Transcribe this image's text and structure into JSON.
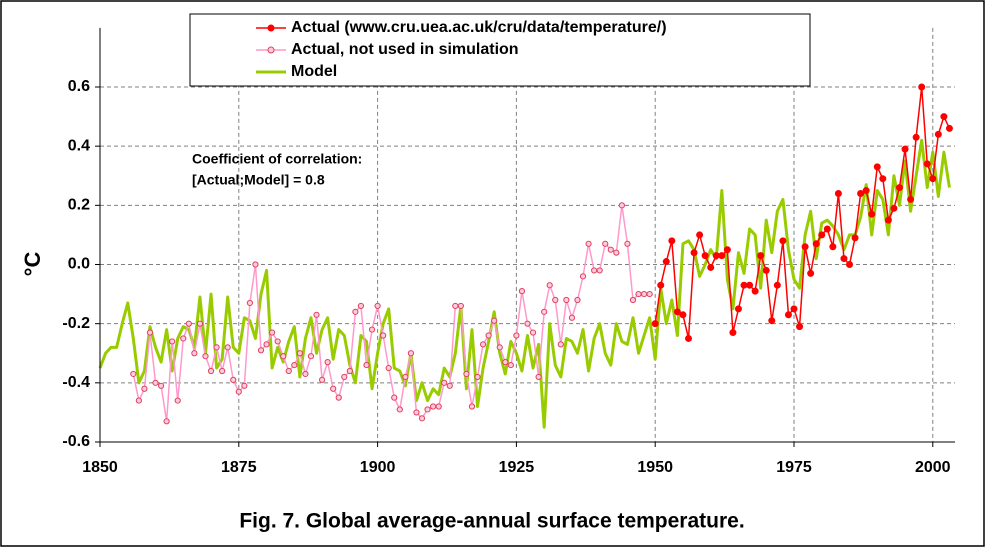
{
  "chart_data": {
    "type": "line",
    "title": "Fig. 7. Global average-annual surface temperature.",
    "y_label": "°C",
    "annotation": [
      "Coefficient of correlation:",
      "[Actual;Model] = 0.8"
    ],
    "xlim": [
      1850,
      2004
    ],
    "xticks": [
      1850,
      1875,
      1900,
      1925,
      1950,
      1975,
      2000
    ],
    "ylim": [
      -0.6,
      0.8
    ],
    "yticks": [
      -0.6,
      -0.4,
      -0.2,
      {
        "value": 0,
        "label": "0.0"
      },
      0.2,
      0.4,
      0.6
    ],
    "grid": true,
    "legend": "top",
    "x": [
      1850,
      1851,
      1852,
      1853,
      1854,
      1855,
      1856,
      1857,
      1858,
      1859,
      1860,
      1861,
      1862,
      1863,
      1864,
      1865,
      1866,
      1867,
      1868,
      1869,
      1870,
      1871,
      1872,
      1873,
      1874,
      1875,
      1876,
      1877,
      1878,
      1879,
      1880,
      1881,
      1882,
      1883,
      1884,
      1885,
      1886,
      1887,
      1888,
      1889,
      1890,
      1891,
      1892,
      1893,
      1894,
      1895,
      1896,
      1897,
      1898,
      1899,
      1900,
      1901,
      1902,
      1903,
      1904,
      1905,
      1906,
      1907,
      1908,
      1909,
      1910,
      1911,
      1912,
      1913,
      1914,
      1915,
      1916,
      1917,
      1918,
      1919,
      1920,
      1921,
      1922,
      1923,
      1924,
      1925,
      1926,
      1927,
      1928,
      1929,
      1930,
      1931,
      1932,
      1933,
      1934,
      1935,
      1936,
      1937,
      1938,
      1939,
      1940,
      1941,
      1942,
      1943,
      1944,
      1945,
      1946,
      1947,
      1948,
      1949,
      1950,
      1951,
      1952,
      1953,
      1954,
      1955,
      1956,
      1957,
      1958,
      1959,
      1960,
      1961,
      1962,
      1963,
      1964,
      1965,
      1966,
      1967,
      1968,
      1969,
      1970,
      1971,
      1972,
      1973,
      1974,
      1975,
      1976,
      1977,
      1978,
      1979,
      1980,
      1981,
      1982,
      1983,
      1984,
      1985,
      1986,
      1987,
      1988,
      1989,
      1990,
      1991,
      1992,
      1993,
      1994,
      1995,
      1996,
      1997,
      1998,
      1999,
      2000,
      2001,
      2002,
      2003
    ],
    "series": [
      {
        "name": "Actual (www.cru.uea.ac.uk/cru/data/temperature/)",
        "color": "#ff0000",
        "marker": "filled",
        "values": [
          null,
          null,
          null,
          null,
          null,
          null,
          null,
          null,
          null,
          null,
          null,
          null,
          null,
          null,
          null,
          null,
          null,
          null,
          null,
          null,
          null,
          null,
          null,
          null,
          null,
          null,
          null,
          null,
          null,
          null,
          null,
          null,
          null,
          null,
          null,
          null,
          null,
          null,
          null,
          null,
          null,
          null,
          null,
          null,
          null,
          null,
          null,
          null,
          null,
          null,
          null,
          null,
          null,
          null,
          null,
          null,
          null,
          null,
          null,
          null,
          null,
          null,
          null,
          null,
          null,
          null,
          null,
          null,
          null,
          null,
          null,
          null,
          null,
          null,
          null,
          null,
          null,
          null,
          null,
          null,
          null,
          null,
          null,
          null,
          null,
          null,
          null,
          null,
          null,
          null,
          null,
          null,
          null,
          null,
          null,
          null,
          null,
          null,
          null,
          null,
          -0.2,
          -0.07,
          0.01,
          0.08,
          -0.16,
          -0.17,
          -0.25,
          0.04,
          0.1,
          0.03,
          -0.01,
          0.03,
          0.03,
          0.05,
          -0.23,
          -0.15,
          -0.07,
          -0.07,
          -0.09,
          0.03,
          -0.02,
          -0.19,
          -0.07,
          0.08,
          -0.17,
          -0.15,
          -0.21,
          0.06,
          -0.03,
          0.07,
          0.1,
          0.12,
          0.06,
          0.24,
          0.02,
          0.0,
          0.09,
          0.24,
          0.25,
          0.17,
          0.33,
          0.29,
          0.15,
          0.19,
          0.26,
          0.39,
          0.22,
          0.43,
          0.6,
          0.34,
          0.29,
          0.44,
          0.5,
          0.46
        ]
      },
      {
        "name": "Actual, not used in simulation",
        "color": "#ff99cc",
        "marker": "open",
        "values": [
          null,
          null,
          null,
          null,
          null,
          null,
          -0.37,
          -0.46,
          -0.42,
          -0.23,
          -0.4,
          -0.41,
          -0.53,
          -0.26,
          -0.46,
          -0.25,
          -0.2,
          -0.3,
          -0.2,
          -0.31,
          -0.36,
          -0.28,
          -0.36,
          -0.28,
          -0.39,
          -0.43,
          -0.41,
          -0.13,
          0.0,
          -0.29,
          -0.27,
          -0.23,
          -0.26,
          -0.31,
          -0.36,
          -0.34,
          -0.3,
          -0.37,
          -0.31,
          -0.17,
          -0.39,
          -0.33,
          -0.42,
          -0.45,
          -0.38,
          -0.36,
          -0.16,
          -0.14,
          -0.34,
          -0.22,
          -0.14,
          -0.24,
          -0.35,
          -0.45,
          -0.49,
          -0.38,
          -0.3,
          -0.5,
          -0.52,
          -0.49,
          -0.48,
          -0.48,
          -0.4,
          -0.41,
          -0.14,
          -0.14,
          -0.37,
          -0.48,
          -0.38,
          -0.27,
          -0.24,
          -0.19,
          -0.28,
          -0.33,
          -0.34,
          -0.24,
          -0.09,
          -0.2,
          -0.23,
          -0.38,
          -0.16,
          -0.07,
          -0.12,
          -0.27,
          -0.12,
          -0.18,
          -0.12,
          -0.04,
          0.07,
          -0.02,
          -0.02,
          0.07,
          0.05,
          0.04,
          0.2,
          0.07,
          -0.12,
          -0.1,
          -0.1,
          -0.1,
          null,
          null,
          null,
          null,
          null,
          null,
          null,
          null,
          null,
          null,
          null,
          null,
          null,
          null,
          null,
          null,
          null,
          null,
          null,
          null,
          null,
          null,
          null,
          null,
          null,
          null,
          null,
          null,
          null,
          null,
          null,
          null,
          null,
          null,
          null,
          null,
          null,
          null,
          null,
          null,
          null,
          null,
          null,
          null,
          null,
          null,
          null,
          null,
          null,
          null,
          null,
          null,
          null,
          null
        ]
      },
      {
        "name": "Model",
        "color": "#99cc00",
        "marker": "none",
        "values": [
          -0.35,
          -0.3,
          -0.28,
          -0.28,
          -0.2,
          -0.13,
          -0.25,
          -0.4,
          -0.36,
          -0.21,
          -0.28,
          -0.33,
          -0.22,
          -0.36,
          -0.25,
          -0.21,
          -0.22,
          -0.28,
          -0.11,
          -0.3,
          -0.1,
          -0.35,
          -0.32,
          -0.11,
          -0.28,
          -0.3,
          -0.18,
          -0.19,
          -0.25,
          -0.1,
          -0.02,
          -0.35,
          -0.28,
          -0.33,
          -0.26,
          -0.21,
          -0.38,
          -0.25,
          -0.18,
          -0.3,
          -0.22,
          -0.18,
          -0.32,
          -0.22,
          -0.24,
          -0.34,
          -0.4,
          -0.24,
          -0.26,
          -0.42,
          -0.3,
          -0.2,
          -0.15,
          -0.35,
          -0.36,
          -0.41,
          -0.3,
          -0.46,
          -0.4,
          -0.46,
          -0.42,
          -0.44,
          -0.35,
          -0.38,
          -0.3,
          -0.14,
          -0.42,
          -0.22,
          -0.48,
          -0.35,
          -0.26,
          -0.16,
          -0.3,
          -0.37,
          -0.26,
          -0.3,
          -0.36,
          -0.24,
          -0.35,
          -0.27,
          -0.55,
          -0.2,
          -0.34,
          -0.38,
          -0.25,
          -0.26,
          -0.3,
          -0.22,
          -0.36,
          -0.25,
          -0.2,
          -0.3,
          -0.34,
          -0.2,
          -0.26,
          -0.27,
          -0.18,
          -0.3,
          -0.24,
          -0.18,
          -0.32,
          -0.08,
          -0.2,
          -0.12,
          -0.24,
          0.07,
          0.08,
          0.05,
          -0.04,
          0.0,
          0.05,
          0.02,
          0.25,
          -0.05,
          -0.15,
          0.04,
          -0.03,
          0.12,
          0.1,
          -0.08,
          0.15,
          0.04,
          0.18,
          0.22,
          0.05,
          -0.05,
          -0.08,
          0.1,
          0.18,
          0.02,
          0.14,
          0.15,
          0.13,
          0.1,
          0.05,
          0.1,
          0.1,
          0.16,
          0.27,
          0.1,
          0.25,
          0.22,
          0.1,
          0.3,
          0.2,
          0.35,
          0.18,
          0.3,
          0.42,
          0.26,
          0.38,
          0.23,
          0.38,
          0.26
        ]
      }
    ]
  }
}
